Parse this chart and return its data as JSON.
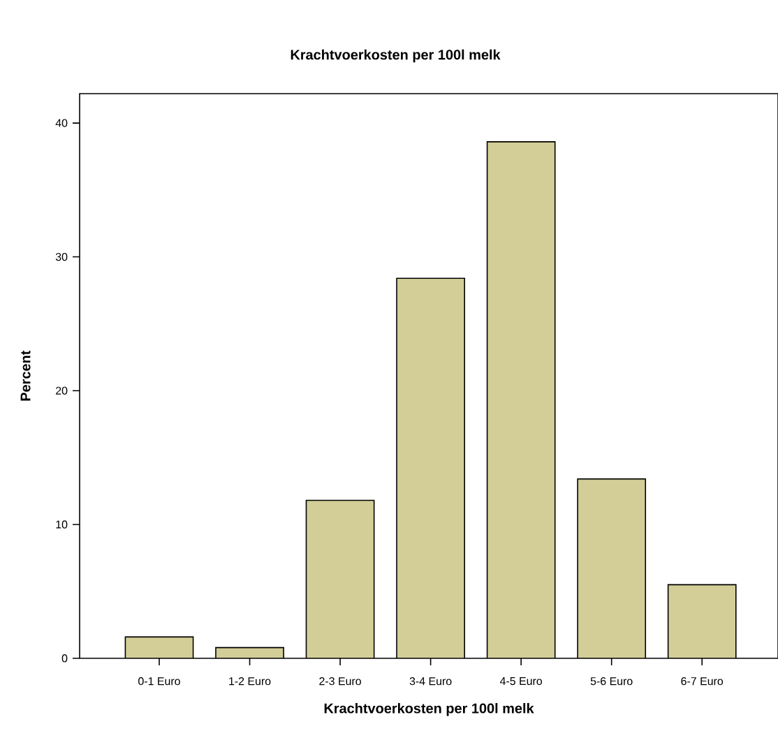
{
  "chart_data": {
    "type": "bar",
    "title": "Krachtvoerkosten per 100l melk",
    "xlabel": "Krachtvoerkosten per 100l melk",
    "ylabel": "Percent",
    "categories": [
      "0-1 Euro",
      "1-2 Euro",
      "2-3 Euro",
      "3-4 Euro",
      "4-5 Euro",
      "5-6 Euro",
      "6-7 Euro"
    ],
    "values": [
      1.6,
      0.8,
      11.8,
      28.4,
      38.6,
      13.4,
      5.5
    ],
    "color": "#d3ce97",
    "ylim": [
      0,
      42.2
    ],
    "yticks": [
      0,
      10,
      20,
      30,
      40
    ]
  }
}
